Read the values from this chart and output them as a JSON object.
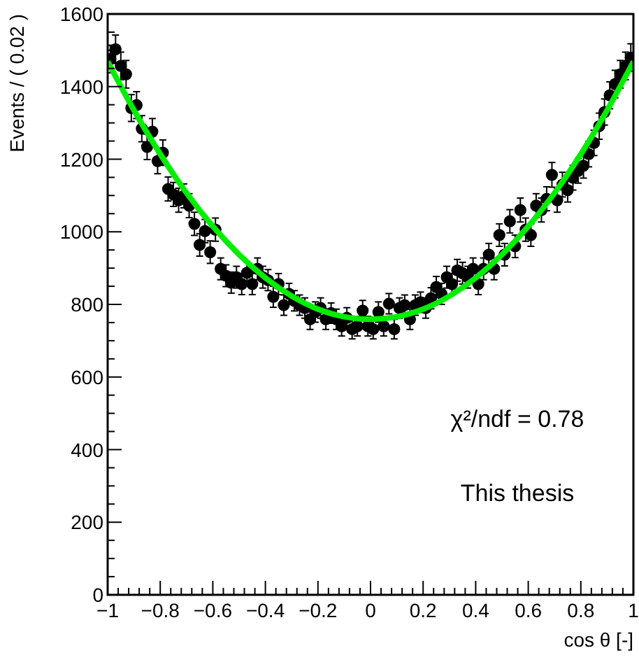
{
  "chart_data": {
    "type": "scatter",
    "xlabel": "cos θ [-]",
    "ylabel": "Events / ( 0.02 )",
    "xlim": [
      -1,
      1
    ],
    "ylim": [
      0,
      1600
    ],
    "xticks": [
      {
        "value": -1,
        "label": "−1"
      },
      {
        "value": -0.8,
        "label": "−0.8"
      },
      {
        "value": -0.6,
        "label": "−0.6"
      },
      {
        "value": -0.4,
        "label": "−0.4"
      },
      {
        "value": -0.2,
        "label": "−0.2"
      },
      0,
      0.2,
      0.4,
      0.6,
      0.8,
      1,
      {
        "value": -0.96,
        "label": null
      },
      {
        "value": -0.92,
        "label": null
      },
      {
        "value": -0.88,
        "label": null
      },
      {
        "value": -0.84,
        "label": null
      },
      {
        "value": -0.76,
        "label": null
      },
      {
        "value": -0.72,
        "label": null
      },
      {
        "value": -0.68,
        "label": null
      },
      {
        "value": -0.64,
        "label": null
      },
      {
        "value": -0.56,
        "label": null
      },
      {
        "value": -0.52,
        "label": null
      },
      {
        "value": -0.48,
        "label": null
      },
      {
        "value": -0.44,
        "label": null
      },
      {
        "value": -0.36,
        "label": null
      },
      {
        "value": -0.32,
        "label": null
      },
      {
        "value": -0.28,
        "label": null
      },
      {
        "value": -0.24,
        "label": null
      },
      {
        "value": -0.16,
        "label": null
      },
      {
        "value": -0.12,
        "label": null
      },
      {
        "value": -0.08,
        "label": null
      },
      {
        "value": -0.04,
        "label": null
      },
      {
        "value": 0.04,
        "label": null
      },
      {
        "value": 0.08,
        "label": null
      },
      {
        "value": 0.12,
        "label": null
      },
      {
        "value": 0.16,
        "label": null
      },
      {
        "value": 0.24,
        "label": null
      },
      {
        "value": 0.28,
        "label": null
      },
      {
        "value": 0.32,
        "label": null
      },
      {
        "value": 0.36,
        "label": null
      },
      {
        "value": 0.44,
        "label": null
      },
      {
        "value": 0.48,
        "label": null
      },
      {
        "value": 0.52,
        "label": null
      },
      {
        "value": 0.56,
        "label": null
      },
      {
        "value": 0.64,
        "label": null
      },
      {
        "value": 0.68,
        "label": null
      },
      {
        "value": 0.72,
        "label": null
      },
      {
        "value": 0.76,
        "label": null
      },
      {
        "value": 0.84,
        "label": null
      },
      {
        "value": 0.88,
        "label": null
      },
      {
        "value": 0.92,
        "label": null
      },
      {
        "value": 0.96,
        "label": null
      }
    ],
    "yticks": [
      0,
      200,
      400,
      600,
      800,
      1000,
      1200,
      1400,
      1600,
      {
        "value": 50,
        "label": null
      },
      {
        "value": 100,
        "label": null
      },
      {
        "value": 150,
        "label": null
      },
      {
        "value": 250,
        "label": null
      },
      {
        "value": 300,
        "label": null
      },
      {
        "value": 350,
        "label": null
      },
      {
        "value": 450,
        "label": null
      },
      {
        "value": 500,
        "label": null
      },
      {
        "value": 550,
        "label": null
      },
      {
        "value": 650,
        "label": null
      },
      {
        "value": 700,
        "label": null
      },
      {
        "value": 750,
        "label": null
      },
      {
        "value": 850,
        "label": null
      },
      {
        "value": 900,
        "label": null
      },
      {
        "value": 950,
        "label": null
      },
      {
        "value": 1050,
        "label": null
      },
      {
        "value": 1100,
        "label": null
      },
      {
        "value": 1150,
        "label": null
      },
      {
        "value": 1250,
        "label": null
      },
      {
        "value": 1300,
        "label": null
      },
      {
        "value": 1350,
        "label": null
      },
      {
        "value": 1450,
        "label": null
      },
      {
        "value": 1500,
        "label": null
      },
      {
        "value": 1550,
        "label": null
      }
    ],
    "grid": false,
    "annotations": [
      "χ²/ndf = 0.78",
      "This thesis"
    ],
    "series": [
      {
        "color": "#000000",
        "marker": "circle",
        "x": [
          -0.99,
          -0.97,
          -0.95,
          -0.93,
          -0.91,
          -0.89,
          -0.87,
          -0.85,
          -0.83,
          -0.81,
          -0.79,
          -0.77,
          -0.75,
          -0.73,
          -0.71,
          -0.69,
          -0.67,
          -0.65,
          -0.63,
          -0.61,
          -0.59,
          -0.57,
          -0.55,
          -0.53,
          -0.51,
          -0.49,
          -0.47,
          -0.45,
          -0.43,
          -0.41,
          -0.39,
          -0.37,
          -0.35,
          -0.33,
          -0.31,
          -0.29,
          -0.27,
          -0.25,
          -0.23,
          -0.21,
          -0.19,
          -0.17,
          -0.15,
          -0.13,
          -0.11,
          -0.09,
          -0.07,
          -0.05,
          -0.03,
          -0.01,
          0.01,
          0.03,
          0.05,
          0.07,
          0.09,
          0.11,
          0.13,
          0.15,
          0.17,
          0.19,
          0.21,
          0.23,
          0.25,
          0.27,
          0.29,
          0.31,
          0.33,
          0.35,
          0.37,
          0.39,
          0.41,
          0.43,
          0.45,
          0.47,
          0.49,
          0.51,
          0.53,
          0.55,
          0.57,
          0.59,
          0.61,
          0.63,
          0.65,
          0.67,
          0.69,
          0.71,
          0.73,
          0.75,
          0.77,
          0.79,
          0.81,
          0.83,
          0.85,
          0.87,
          0.89,
          0.91,
          0.93,
          0.95,
          0.97,
          0.99
        ],
        "values": [
          1476,
          1503,
          1457,
          1434,
          1341,
          1349,
          1284,
          1234,
          1276,
          1195,
          1218,
          1118,
          1103,
          1087,
          1099,
          1072,
          1022,
          964,
          1002,
          944,
          1006,
          898,
          879,
          860,
          875,
          856,
          887,
          856,
          898,
          875,
          867,
          821,
          856,
          798,
          829,
          810,
          798,
          790,
          759,
          779,
          790,
          759,
          776,
          759,
          740,
          763,
          732,
          740,
          783,
          740,
          732,
          779,
          740,
          802,
          732,
          790,
          798,
          759,
          798,
          806,
          790,
          817,
          848,
          829,
          875,
          856,
          894,
          886,
          875,
          898,
          856,
          898,
          937,
          898,
          991,
          937,
          1029,
          960,
          1060,
          1006,
          991,
          1072,
          1060,
          1091,
          1157,
          1087,
          1130,
          1115,
          1149,
          1168,
          1182,
          1214,
          1245,
          1291,
          1330,
          1376,
          1407,
          1434,
          1457,
          1480
        ],
        "errors": [
          38,
          39,
          38,
          38,
          37,
          37,
          36,
          35,
          36,
          35,
          35,
          33,
          33,
          33,
          33,
          33,
          32,
          31,
          32,
          31,
          32,
          30,
          30,
          29,
          30,
          29,
          30,
          29,
          30,
          30,
          29,
          29,
          29,
          28,
          29,
          28,
          28,
          28,
          28,
          28,
          28,
          28,
          28,
          28,
          27,
          28,
          27,
          27,
          28,
          27,
          27,
          28,
          27,
          28,
          27,
          28,
          28,
          28,
          28,
          28,
          28,
          29,
          29,
          29,
          30,
          29,
          30,
          30,
          30,
          30,
          29,
          30,
          31,
          30,
          31,
          31,
          32,
          31,
          33,
          32,
          31,
          33,
          33,
          33,
          34,
          33,
          34,
          33,
          34,
          34,
          34,
          35,
          35,
          36,
          36,
          37,
          38,
          38,
          38,
          38
        ]
      },
      {
        "type": "line",
        "color": "#00ee00",
        "x": [
          -1,
          -0.9,
          -0.8,
          -0.7,
          -0.6,
          -0.5,
          -0.4,
          -0.3,
          -0.2,
          -0.1,
          0,
          0.1,
          0.2,
          0.3,
          0.4,
          0.5,
          0.6,
          0.7,
          0.8,
          0.9,
          1
        ],
        "values": [
          1469,
          1335,
          1214,
          1107,
          1015,
          937,
          873,
          823,
          787,
          766,
          759,
          766,
          787,
          823,
          873,
          937,
          1015,
          1107,
          1214,
          1335,
          1469
        ]
      }
    ]
  }
}
